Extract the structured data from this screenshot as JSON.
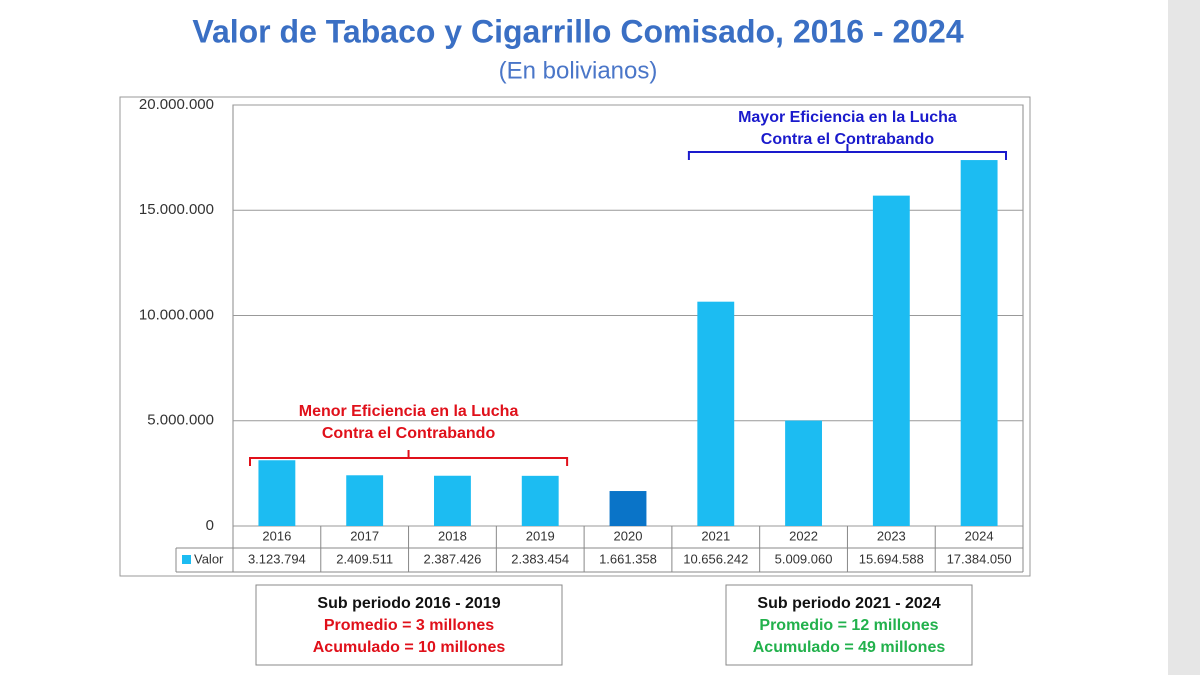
{
  "chart_data": {
    "type": "bar",
    "title": "Valor de Tabaco y Cigarrillo Comisado, 2016 - 2024",
    "subtitle": "(En bolivianos)",
    "categories": [
      "2016",
      "2017",
      "2018",
      "2019",
      "2020",
      "2021",
      "2022",
      "2023",
      "2024"
    ],
    "series": [
      {
        "name": "Valor",
        "color": "#1cbcf2",
        "colors": [
          "#1cbcf2",
          "#1cbcf2",
          "#1cbcf2",
          "#1cbcf2",
          "#0a74c8",
          "#1cbcf2",
          "#1cbcf2",
          "#1cbcf2",
          "#1cbcf2"
        ],
        "values": [
          3123794,
          2409511,
          2387426,
          2383454,
          1661358,
          10656242,
          5009060,
          15694588,
          17384050
        ],
        "value_labels": [
          "3.123.794",
          "2.409.511",
          "2.387.426",
          "2.383.454",
          "1.661.358",
          "10.656.242",
          "5.009.060",
          "15.694.588",
          "17.384.050"
        ]
      }
    ],
    "ylim": [
      0,
      20000000
    ],
    "yticks": [
      0,
      {
        "value": 5000000,
        "label": "5.000.000"
      },
      {
        "value": 10000000,
        "label": "10.000.000"
      },
      {
        "value": 15000000,
        "label": "15.000.000"
      },
      {
        "value": 20000000,
        "label": "20.000.000"
      }
    ],
    "grid": true,
    "annotations": [
      {
        "lines": [
          "Menor Eficiencia  en la Lucha",
          "Contra el Contrabando"
        ],
        "color": "#e0101a"
      },
      {
        "lines": [
          "Mayor Eficiencia  en la Lucha",
          "Contra el Contrabando"
        ],
        "color": "#1a1acc"
      }
    ],
    "summaries": [
      {
        "title": "Sub periodo 2016 - 2019",
        "lines": [
          "Promedio =  3 millones",
          "Acumulado = 10 millones"
        ],
        "color": "#e0101a"
      },
      {
        "title": "Sub periodo 2021 - 2024",
        "lines": [
          "Promedio =  12 millones",
          "Acumulado = 49 millones"
        ],
        "color": "#22b14c"
      }
    ]
  }
}
